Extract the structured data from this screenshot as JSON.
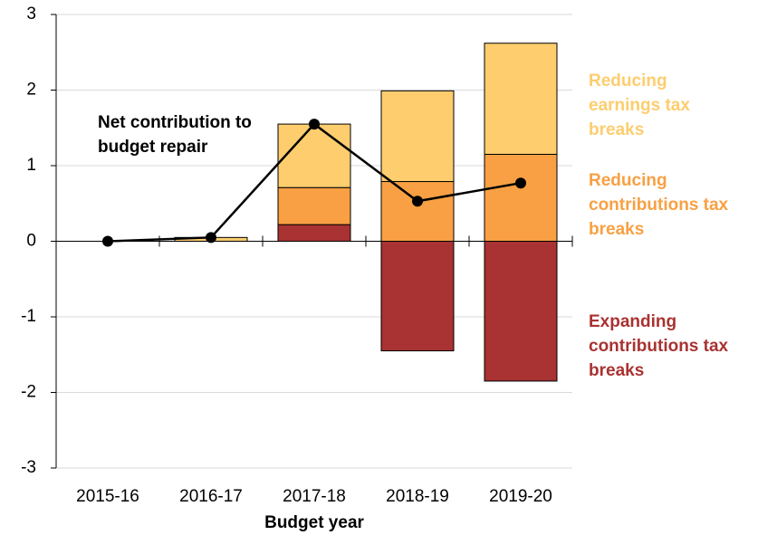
{
  "chart_data": {
    "type": "bar",
    "stacked": true,
    "xlabel": "Budget year",
    "categories": [
      "2015-16",
      "2016-17",
      "2017-18",
      "2018-19",
      "2019-20"
    ],
    "series": [
      {
        "name": "Expanding contributions tax breaks",
        "color": "#a93232",
        "values": [
          0,
          0,
          0.22,
          -1.45,
          -1.85
        ]
      },
      {
        "name": "Reducing contributions tax breaks",
        "color": "#f8a043",
        "values": [
          0,
          0,
          0.49,
          0.79,
          1.15
        ]
      },
      {
        "name": "Reducing earnings tax breaks",
        "color": "#fdcd6e",
        "values": [
          0,
          0.05,
          0.84,
          1.2,
          1.47
        ]
      }
    ],
    "line": {
      "name": "Net contribution to budget repair",
      "color": "#000000",
      "values": [
        0,
        0.05,
        1.55,
        0.53,
        0.77
      ]
    },
    "ylim": [
      -3,
      3
    ],
    "yticks": [
      -3,
      -2,
      -1,
      0,
      1,
      2,
      3
    ],
    "grid": true
  }
}
